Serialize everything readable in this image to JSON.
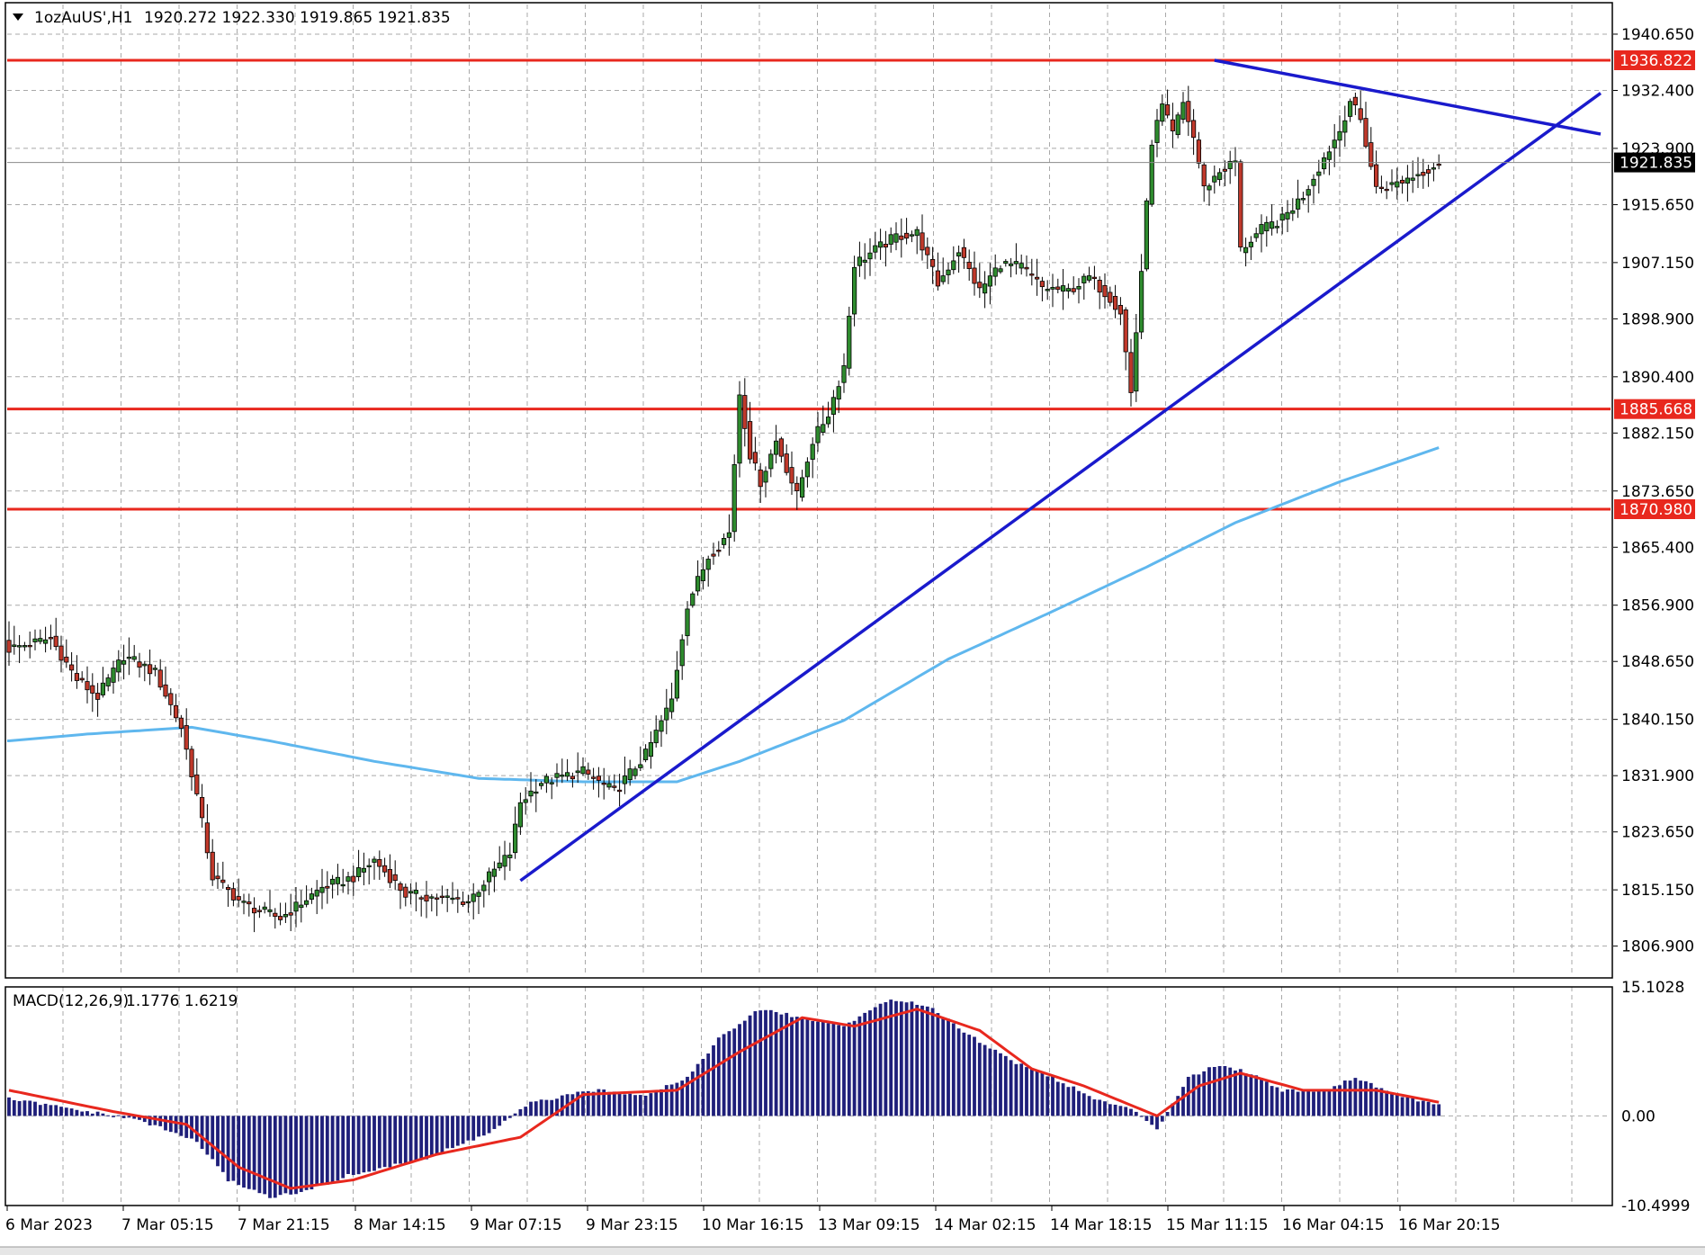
{
  "header": {
    "symbol": "1ozAuUS',H1",
    "ohlc": "1920.272 1922.330 1919.865 1921.835"
  },
  "colors": {
    "background": "#ffffff",
    "grid": "#a9a9a9",
    "bull_body": "#2e8b2e",
    "bear_body": "#c0392b",
    "wick": "#000000",
    "moving_average": "#5fb7ee",
    "trendline": "#1a1acc",
    "level": "#e8281e",
    "last_price_tag": "#000000",
    "macd_histogram": "#1f1f7a",
    "macd_signal": "#e8281e"
  },
  "chart_data": [
    {
      "type": "candlestick",
      "title": "1ozAuUS',H1",
      "timeframe": "H1",
      "grid": true,
      "ylim": [
        1802.5,
        1945.0
      ],
      "y_ticks": [
        "1940.650",
        "1932.400",
        "1923.900",
        "1915.650",
        "1907.150",
        "1898.900",
        "1890.400",
        "1882.150",
        "1873.650",
        "1865.400",
        "1856.900",
        "1848.650",
        "1840.150",
        "1831.900",
        "1823.650",
        "1815.150",
        "1806.900"
      ],
      "x_labels": [
        "6 Mar 2023",
        "7 Mar 05:15",
        "7 Mar 21:15",
        "8 Mar 14:15",
        "9 Mar 07:15",
        "9 Mar 23:15",
        "10 Mar 16:15",
        "13 Mar 09:15",
        "14 Mar 02:15",
        "14 Mar 18:15",
        "15 Mar 11:15",
        "16 Mar 04:15",
        "16 Mar 20:15"
      ],
      "last_price": {
        "value": 1921.835,
        "label": "1921.835"
      },
      "horizontal_levels": [
        {
          "value": 1936.822,
          "label": "1936.822"
        },
        {
          "value": 1885.668,
          "label": "1885.668"
        },
        {
          "value": 1870.98,
          "label": "1870.980"
        }
      ],
      "ohlc_anchors": [
        {
          "bar": 0,
          "close": 1850.5
        },
        {
          "bar": 8,
          "close": 1852.0
        },
        {
          "bar": 13,
          "close": 1846.0
        },
        {
          "bar": 17,
          "close": 1843.5
        },
        {
          "bar": 22,
          "close": 1849.5
        },
        {
          "bar": 28,
          "close": 1847.0
        },
        {
          "bar": 33,
          "close": 1839.0
        },
        {
          "bar": 36,
          "close": 1829.0
        },
        {
          "bar": 39,
          "close": 1817.0
        },
        {
          "bar": 45,
          "close": 1813.0
        },
        {
          "bar": 52,
          "close": 1811.0
        },
        {
          "bar": 60,
          "close": 1815.5
        },
        {
          "bar": 66,
          "close": 1817.0
        },
        {
          "bar": 70,
          "close": 1819.5
        },
        {
          "bar": 76,
          "close": 1814.5
        },
        {
          "bar": 82,
          "close": 1814.0
        },
        {
          "bar": 88,
          "close": 1813.5
        },
        {
          "bar": 93,
          "close": 1818.0
        },
        {
          "bar": 96,
          "close": 1820.5
        },
        {
          "bar": 98,
          "close": 1828.0
        },
        {
          "bar": 102,
          "close": 1831.0
        },
        {
          "bar": 110,
          "close": 1832.5
        },
        {
          "bar": 116,
          "close": 1829.5
        },
        {
          "bar": 122,
          "close": 1835.0
        },
        {
          "bar": 127,
          "close": 1843.0
        },
        {
          "bar": 130,
          "close": 1857.0
        },
        {
          "bar": 134,
          "close": 1864.0
        },
        {
          "bar": 138,
          "close": 1867.5
        },
        {
          "bar": 140,
          "close": 1888.0
        },
        {
          "bar": 142,
          "close": 1879.0
        },
        {
          "bar": 144,
          "close": 1875.0
        },
        {
          "bar": 147,
          "close": 1881.0
        },
        {
          "bar": 151,
          "close": 1873.0
        },
        {
          "bar": 154,
          "close": 1881.0
        },
        {
          "bar": 157,
          "close": 1885.0
        },
        {
          "bar": 160,
          "close": 1892.0
        },
        {
          "bar": 162,
          "close": 1907.0
        },
        {
          "bar": 166,
          "close": 1909.0
        },
        {
          "bar": 170,
          "close": 1911.0
        },
        {
          "bar": 174,
          "close": 1911.5
        },
        {
          "bar": 178,
          "close": 1904.0
        },
        {
          "bar": 182,
          "close": 1909.0
        },
        {
          "bar": 186,
          "close": 1903.0
        },
        {
          "bar": 190,
          "close": 1907.0
        },
        {
          "bar": 194,
          "close": 1906.5
        },
        {
          "bar": 198,
          "close": 1903.5
        },
        {
          "bar": 203,
          "close": 1903.0
        },
        {
          "bar": 207,
          "close": 1905.0
        },
        {
          "bar": 211,
          "close": 1902.0
        },
        {
          "bar": 213,
          "close": 1900.0
        },
        {
          "bar": 215,
          "close": 1888.0
        },
        {
          "bar": 217,
          "close": 1906.0
        },
        {
          "bar": 219,
          "close": 1925.0
        },
        {
          "bar": 221,
          "close": 1930.0
        },
        {
          "bar": 223,
          "close": 1926.0
        },
        {
          "bar": 225,
          "close": 1930.5
        },
        {
          "bar": 227,
          "close": 1925.5
        },
        {
          "bar": 229,
          "close": 1918.0
        },
        {
          "bar": 232,
          "close": 1920.5
        },
        {
          "bar": 235,
          "close": 1922.0
        },
        {
          "bar": 236,
          "close": 1909.0
        },
        {
          "bar": 240,
          "close": 1912.0
        },
        {
          "bar": 244,
          "close": 1913.5
        },
        {
          "bar": 248,
          "close": 1917.0
        },
        {
          "bar": 252,
          "close": 1922.5
        },
        {
          "bar": 255,
          "close": 1926.5
        },
        {
          "bar": 257,
          "close": 1931.0
        },
        {
          "bar": 259,
          "close": 1928.0
        },
        {
          "bar": 262,
          "close": 1918.0
        },
        {
          "bar": 265,
          "close": 1918.5
        },
        {
          "bar": 268,
          "close": 1919.5
        },
        {
          "bar": 271,
          "close": 1920.5
        },
        {
          "bar": 274,
          "close": 1921.835
        }
      ],
      "moving_average_points": [
        {
          "bar": 0,
          "value": 1837.0
        },
        {
          "bar": 15,
          "value": 1838.0
        },
        {
          "bar": 35,
          "value": 1839.0
        },
        {
          "bar": 50,
          "value": 1837.0
        },
        {
          "bar": 70,
          "value": 1834.0
        },
        {
          "bar": 90,
          "value": 1831.5
        },
        {
          "bar": 110,
          "value": 1831.0
        },
        {
          "bar": 128,
          "value": 1831.0
        },
        {
          "bar": 140,
          "value": 1834.0
        },
        {
          "bar": 160,
          "value": 1840.0
        },
        {
          "bar": 180,
          "value": 1849.0
        },
        {
          "bar": 200,
          "value": 1856.0
        },
        {
          "bar": 218,
          "value": 1862.5
        },
        {
          "bar": 235,
          "value": 1869.0
        },
        {
          "bar": 255,
          "value": 1875.0
        },
        {
          "bar": 274,
          "value": 1880.0
        }
      ],
      "trendlines": [
        {
          "from": {
            "bar": 98,
            "price": 1816.5
          },
          "to": {
            "bar": 305,
            "price": 1932.0
          }
        },
        {
          "from": {
            "bar": 231,
            "price": 1936.822
          },
          "to": {
            "bar": 305,
            "price": 1926.0
          }
        }
      ]
    },
    {
      "type": "bar",
      "title": "MACD(12,26,9)",
      "values_label": "1.1776 1.6219",
      "ylim": [
        -10.4999,
        15.1028
      ],
      "y_ticks": [
        "15.1028",
        "0.00",
        "-10.4999"
      ],
      "histogram_anchors": [
        {
          "bar": 0,
          "value": 2.0
        },
        {
          "bar": 15,
          "value": 0.5
        },
        {
          "bar": 25,
          "value": -0.5
        },
        {
          "bar": 36,
          "value": -3.0
        },
        {
          "bar": 42,
          "value": -7.5
        },
        {
          "bar": 50,
          "value": -9.5
        },
        {
          "bar": 56,
          "value": -9.0
        },
        {
          "bar": 65,
          "value": -7.0
        },
        {
          "bar": 80,
          "value": -5.0
        },
        {
          "bar": 92,
          "value": -2.0
        },
        {
          "bar": 100,
          "value": 1.5
        },
        {
          "bar": 112,
          "value": 3.0
        },
        {
          "bar": 122,
          "value": 2.5
        },
        {
          "bar": 130,
          "value": 4.5
        },
        {
          "bar": 136,
          "value": 9.0
        },
        {
          "bar": 144,
          "value": 12.5
        },
        {
          "bar": 152,
          "value": 11.5
        },
        {
          "bar": 160,
          "value": 10.5
        },
        {
          "bar": 168,
          "value": 13.5
        },
        {
          "bar": 176,
          "value": 13.0
        },
        {
          "bar": 184,
          "value": 9.5
        },
        {
          "bar": 192,
          "value": 6.5
        },
        {
          "bar": 200,
          "value": 4.5
        },
        {
          "bar": 208,
          "value": 2.0
        },
        {
          "bar": 216,
          "value": 0.5
        },
        {
          "bar": 220,
          "value": -1.5
        },
        {
          "bar": 226,
          "value": 4.5
        },
        {
          "bar": 232,
          "value": 6.0
        },
        {
          "bar": 238,
          "value": 5.0
        },
        {
          "bar": 244,
          "value": 3.0
        },
        {
          "bar": 252,
          "value": 3.0
        },
        {
          "bar": 258,
          "value": 4.5
        },
        {
          "bar": 266,
          "value": 2.5
        },
        {
          "bar": 274,
          "value": 1.2
        }
      ],
      "signal_anchors": [
        {
          "bar": 0,
          "value": 3.0
        },
        {
          "bar": 20,
          "value": 0.5
        },
        {
          "bar": 34,
          "value": -1.0
        },
        {
          "bar": 44,
          "value": -6.0
        },
        {
          "bar": 54,
          "value": -8.5
        },
        {
          "bar": 66,
          "value": -7.5
        },
        {
          "bar": 82,
          "value": -4.5
        },
        {
          "bar": 98,
          "value": -2.5
        },
        {
          "bar": 110,
          "value": 2.5
        },
        {
          "bar": 128,
          "value": 3.0
        },
        {
          "bar": 140,
          "value": 7.5
        },
        {
          "bar": 152,
          "value": 11.5
        },
        {
          "bar": 162,
          "value": 10.5
        },
        {
          "bar": 174,
          "value": 12.5
        },
        {
          "bar": 186,
          "value": 10.0
        },
        {
          "bar": 196,
          "value": 5.5
        },
        {
          "bar": 206,
          "value": 3.5
        },
        {
          "bar": 220,
          "value": 0.0
        },
        {
          "bar": 228,
          "value": 3.5
        },
        {
          "bar": 236,
          "value": 5.0
        },
        {
          "bar": 248,
          "value": 3.0
        },
        {
          "bar": 262,
          "value": 3.0
        },
        {
          "bar": 274,
          "value": 1.6
        }
      ]
    }
  ]
}
